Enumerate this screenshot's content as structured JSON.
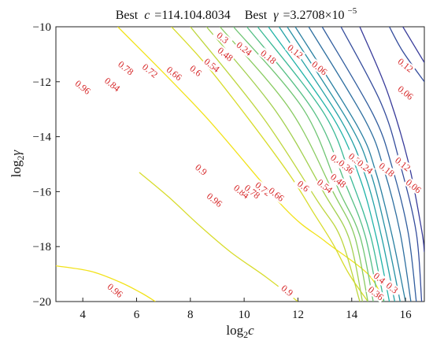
{
  "chart_data": {
    "type": "contour",
    "title": {
      "best_c_label": "Best",
      "best_c_var": "c",
      "best_c_value": "=114.104.8034",
      "best_gamma_label": "Best",
      "best_gamma_var": "γ",
      "best_gamma_value": "=3.2708×10",
      "best_gamma_exp": "−5"
    },
    "xlabel": {
      "base": "log",
      "sub": "2",
      "var": "c"
    },
    "ylabel": {
      "base": "log",
      "sub": "2",
      "var": "γ"
    },
    "xlim": [
      3,
      16.7
    ],
    "ylim": [
      -20,
      -10
    ],
    "x_ticks": [
      4,
      6,
      8,
      10,
      12,
      14,
      16
    ],
    "y_ticks": [
      -20,
      -18,
      -16,
      -14,
      -12,
      -10
    ],
    "y_tick_labels": [
      "−20",
      "−18",
      "−16",
      "−14",
      "−12",
      "−10"
    ],
    "grid": false,
    "colors": {
      "low": "#3b2a98",
      "mid": "#20b3a8",
      "high": "#f2e21a",
      "label": "#d62728"
    },
    "contours": [
      {
        "level": 0.96,
        "points": [
          [
            5.3,
            -10
          ],
          [
            8.5,
            -13.2
          ],
          [
            11.5,
            -16.6
          ],
          [
            13.0,
            -17.8
          ],
          [
            14.6,
            -19.0
          ],
          [
            15.2,
            -20
          ]
        ]
      },
      {
        "level": 0.96,
        "points": [
          [
            3,
            -18.7
          ],
          [
            4.3,
            -18.9
          ],
          [
            5.4,
            -19.3
          ],
          [
            6.2,
            -19.7
          ],
          [
            6.7,
            -20
          ]
        ]
      },
      {
        "level": 0.9,
        "points": [
          [
            7.3,
            -10
          ],
          [
            8.6,
            -11.4
          ],
          [
            10.2,
            -13.4
          ],
          [
            11.7,
            -15.4
          ],
          [
            12.6,
            -16.8
          ],
          [
            13.3,
            -17.9
          ],
          [
            13.9,
            -19.0
          ],
          [
            14.6,
            -20
          ]
        ]
      },
      {
        "level": 0.9,
        "points": [
          [
            6.1,
            -15.3
          ],
          [
            7.2,
            -16.2
          ],
          [
            8.3,
            -17.2
          ],
          [
            9.5,
            -18.2
          ],
          [
            10.8,
            -19.1
          ],
          [
            12.0,
            -20
          ]
        ]
      },
      {
        "level": 0.84,
        "points": [
          [
            8.0,
            -10
          ],
          [
            10.7,
            -13.3
          ],
          [
            12.7,
            -16.3
          ],
          [
            13.6,
            -17.7
          ],
          [
            14.3,
            -20
          ]
        ]
      },
      {
        "level": 0.78,
        "points": [
          [
            8.6,
            -10
          ],
          [
            11.2,
            -13.1
          ],
          [
            13.0,
            -16.1
          ],
          [
            13.9,
            -17.7
          ],
          [
            14.4,
            -20
          ]
        ]
      },
      {
        "level": 0.72,
        "points": [
          [
            9.1,
            -10
          ],
          [
            11.7,
            -13.0
          ],
          [
            13.3,
            -16.0
          ],
          [
            14.1,
            -17.6
          ],
          [
            14.6,
            -20
          ]
        ]
      },
      {
        "level": 0.66,
        "points": [
          [
            9.6,
            -10
          ],
          [
            12.2,
            -13.0
          ],
          [
            13.5,
            -15.9
          ],
          [
            14.3,
            -17.6
          ],
          [
            14.8,
            -20
          ]
        ]
      },
      {
        "level": 0.6,
        "points": [
          [
            10.1,
            -10
          ],
          [
            12.6,
            -13.1
          ],
          [
            13.8,
            -15.8
          ],
          [
            14.5,
            -17.6
          ],
          [
            15.0,
            -20
          ]
        ]
      },
      {
        "level": 0.54,
        "points": [
          [
            10.5,
            -10
          ],
          [
            13.0,
            -13.2
          ],
          [
            14.0,
            -15.6
          ],
          [
            14.7,
            -17.6
          ],
          [
            15.2,
            -20
          ]
        ]
      },
      {
        "level": 0.48,
        "points": [
          [
            10.9,
            -10
          ],
          [
            13.3,
            -13.3
          ],
          [
            14.3,
            -15.5
          ],
          [
            14.9,
            -17.6
          ],
          [
            15.4,
            -20
          ]
        ]
      },
      {
        "level": 0.42,
        "points": [
          [
            11.3,
            -10
          ],
          [
            13.6,
            -13.4
          ],
          [
            14.5,
            -15.4
          ],
          [
            15.1,
            -17.6
          ],
          [
            15.6,
            -20
          ]
        ]
      },
      {
        "level": 0.36,
        "points": [
          [
            11.6,
            -10
          ],
          [
            13.9,
            -13.5
          ],
          [
            14.7,
            -15.3
          ],
          [
            15.3,
            -17.6
          ],
          [
            15.8,
            -20
          ]
        ]
      },
      {
        "level": 0.3,
        "points": [
          [
            11.9,
            -10
          ],
          [
            14.2,
            -13.6
          ],
          [
            14.9,
            -15.3
          ],
          [
            15.5,
            -17.6
          ],
          [
            16.0,
            -20
          ]
        ]
      },
      {
        "level": 0.24,
        "points": [
          [
            12.4,
            -10
          ],
          [
            14.5,
            -13.4
          ],
          [
            15.2,
            -15.2
          ],
          [
            15.8,
            -17.5
          ],
          [
            16.2,
            -20
          ]
        ]
      },
      {
        "level": 0.18,
        "points": [
          [
            12.9,
            -10
          ],
          [
            14.8,
            -13.2
          ],
          [
            15.5,
            -15.1
          ],
          [
            16.1,
            -17.5
          ],
          [
            16.4,
            -20
          ]
        ]
      },
      {
        "level": 0.12,
        "points": [
          [
            13.6,
            -10
          ],
          [
            15.1,
            -12.8
          ],
          [
            15.8,
            -15.0
          ],
          [
            16.4,
            -17.5
          ],
          [
            16.6,
            -20
          ]
        ]
      },
      {
        "level": 0.06,
        "points": [
          [
            14.3,
            -10
          ],
          [
            15.3,
            -12.3
          ],
          [
            16.1,
            -14.9
          ],
          [
            16.6,
            -17.4
          ],
          [
            16.7,
            -18.2
          ]
        ]
      },
      {
        "level": 0.12,
        "points": [
          [
            15.4,
            -10
          ],
          [
            15.9,
            -10.9
          ],
          [
            16.7,
            -12.0
          ]
        ]
      },
      {
        "level": 0.06,
        "points": [
          [
            15.9,
            -10
          ],
          [
            16.7,
            -11.3
          ]
        ]
      }
    ],
    "level_labels": [
      {
        "text": "0.96",
        "x": 4.0,
        "y": -12.2
      },
      {
        "text": "0.84",
        "x": 5.1,
        "y": -12.1
      },
      {
        "text": "0.78",
        "x": 5.6,
        "y": -11.5
      },
      {
        "text": "0.72",
        "x": 6.5,
        "y": -11.6
      },
      {
        "text": "0.66",
        "x": 7.4,
        "y": -11.7
      },
      {
        "text": "0.6",
        "x": 8.2,
        "y": -11.6
      },
      {
        "text": "0.54",
        "x": 8.8,
        "y": -11.4
      },
      {
        "text": "0.48",
        "x": 9.3,
        "y": -11.0
      },
      {
        "text": "0.3",
        "x": 9.2,
        "y": -10.4
      },
      {
        "text": "0.24",
        "x": 10.0,
        "y": -10.8
      },
      {
        "text": "0.18",
        "x": 10.9,
        "y": -11.1
      },
      {
        "text": "0.12",
        "x": 11.9,
        "y": -10.9
      },
      {
        "text": "0.06",
        "x": 12.8,
        "y": -11.5
      },
      {
        "text": "0.12",
        "x": 16.0,
        "y": -11.4
      },
      {
        "text": "0.06",
        "x": 16.0,
        "y": -12.4
      },
      {
        "text": "0.9",
        "x": 8.4,
        "y": -15.2
      },
      {
        "text": "0.96",
        "x": 8.9,
        "y": -16.3
      },
      {
        "text": "0.84",
        "x": 9.9,
        "y": -16.0
      },
      {
        "text": "0.78",
        "x": 10.3,
        "y": -16.0
      },
      {
        "text": "0.72",
        "x": 10.7,
        "y": -15.9
      },
      {
        "text": "0.66",
        "x": 11.2,
        "y": -16.1
      },
      {
        "text": "0.6",
        "x": 12.2,
        "y": -15.8
      },
      {
        "text": "0.54",
        "x": 13.0,
        "y": -15.8
      },
      {
        "text": "0.48",
        "x": 13.5,
        "y": -15.6
      },
      {
        "text": "0.42",
        "x": 13.5,
        "y": -14.9
      },
      {
        "text": "0.36",
        "x": 13.8,
        "y": -15.1
      },
      {
        "text": "0.3",
        "x": 14.1,
        "y": -14.8
      },
      {
        "text": "0.24",
        "x": 14.5,
        "y": -15.1
      },
      {
        "text": "0.18",
        "x": 15.3,
        "y": -15.2
      },
      {
        "text": "0.12",
        "x": 15.9,
        "y": -15.0
      },
      {
        "text": "0.06",
        "x": 16.3,
        "y": -15.8
      },
      {
        "text": "0.96",
        "x": 5.2,
        "y": -19.6
      },
      {
        "text": "0.9",
        "x": 11.6,
        "y": -19.6
      },
      {
        "text": "0.42",
        "x": 15.1,
        "y": -19.2
      },
      {
        "text": "0.36",
        "x": 14.9,
        "y": -19.7
      },
      {
        "text": "0.3",
        "x": 15.5,
        "y": -19.5
      }
    ]
  }
}
